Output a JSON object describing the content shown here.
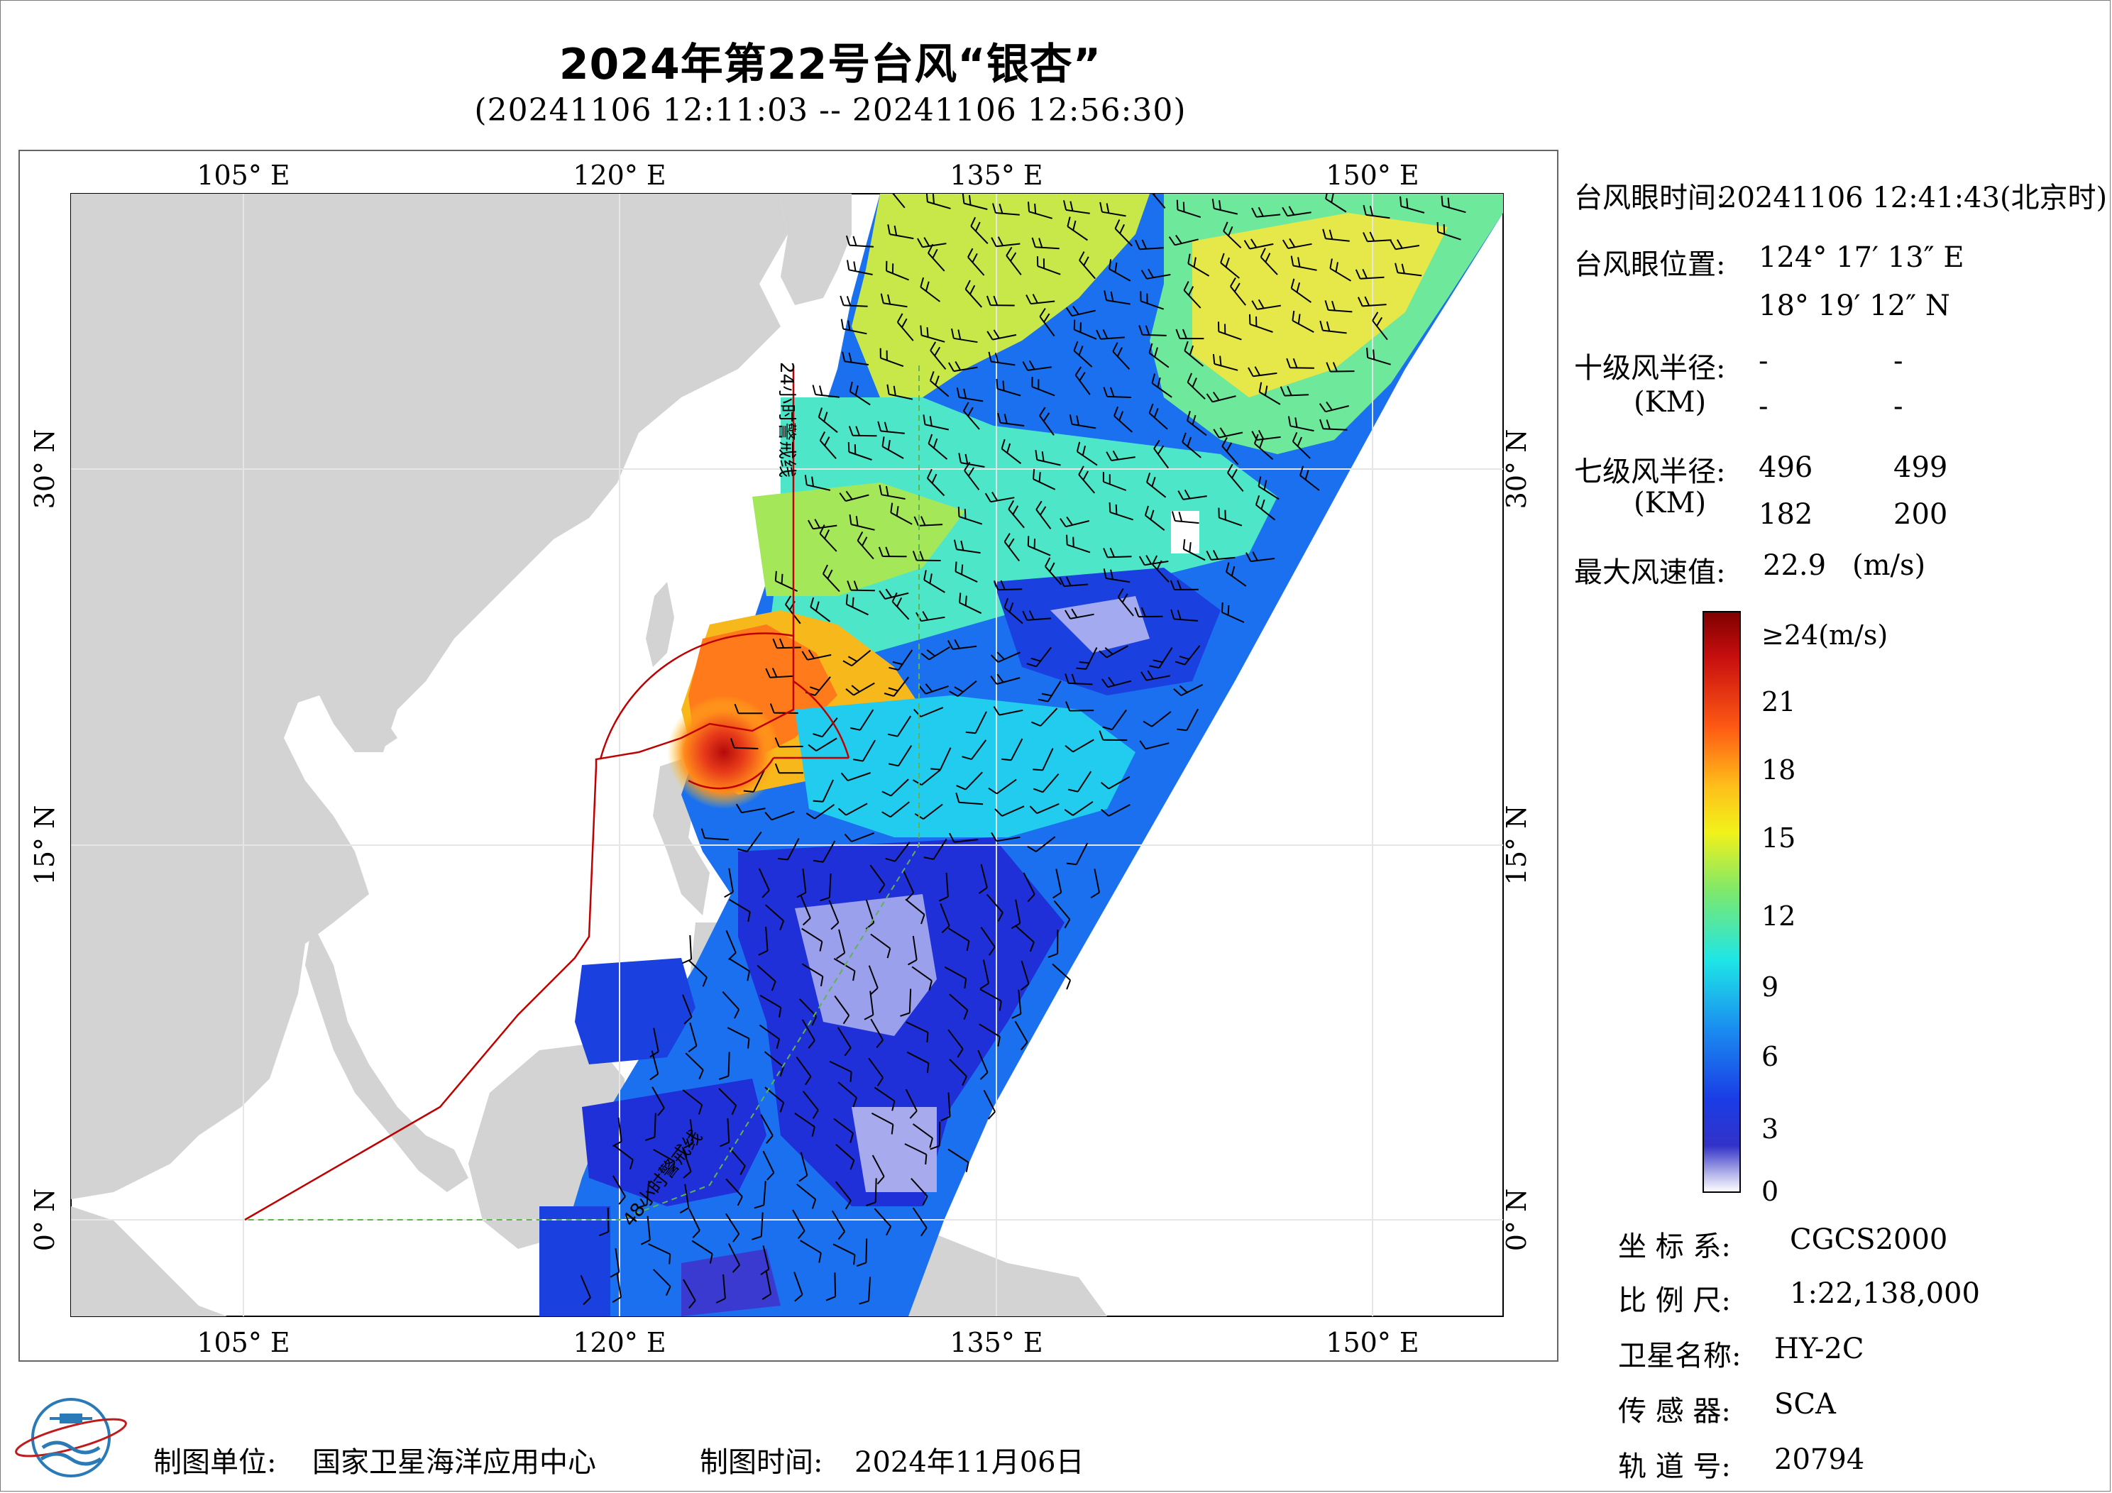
{
  "header": {
    "title": "2024年第22号台风“银杏”",
    "subtitle": "(20241106 12:11:03 -- 20241106 12:56:30)"
  },
  "map": {
    "lon_top": [
      "105° E",
      "120° E",
      "135° E",
      "150° E"
    ],
    "lon_bottom": [
      "105° E",
      "120° E",
      "135° E",
      "150° E"
    ],
    "lat_left": [
      "30° N",
      "15° N",
      "0° N"
    ],
    "lat_right": [
      "30° N",
      "15° N",
      "0° N"
    ],
    "warning_line_24h": "24小时警戒线",
    "warning_line_48h": "48小时警戒线",
    "extent": {
      "lon_min": 98,
      "lon_max": 155,
      "lat_min": -4,
      "lat_max": 41
    },
    "colors": {
      "land": "#d3d3d3",
      "sea": "#ffffff",
      "warning_24h": "#c00000",
      "warning_48h": "#5fb44f",
      "wind_barb": "#000000"
    }
  },
  "info": {
    "eye_time_label": "台风眼时间:",
    "eye_time_value": "20241106 12:41:43(北京时)",
    "eye_pos_label": "台风眼位置:",
    "eye_lon": "124° 17′ 13″ E",
    "eye_lat": "18° 19′ 12″ N",
    "r10_label": "十级风半径:",
    "r10_unit": "(KM)",
    "r10_values": [
      "-",
      "-",
      "-",
      "-"
    ],
    "r7_label": "七级风半径:",
    "r7_unit": "(KM)",
    "r7_values": [
      "496",
      "499",
      "182",
      "200"
    ],
    "max_wind_label": "最大风速值:",
    "max_wind_value": "22.9",
    "max_wind_unit": "(m/s)"
  },
  "colorbar": {
    "labels": [
      "≥24(m/s)",
      "21",
      "18",
      "15",
      "12",
      "9",
      "6",
      "3",
      "0"
    ],
    "stops": [
      "#7f0000",
      "#d71a1a",
      "#ff6a1a",
      "#ffb21a",
      "#e8e81a",
      "#8ee85a",
      "#1ae8e8",
      "#1aa0f0",
      "#1a5af0",
      "#1a20e0",
      "#3a3ad0",
      "#ffffff"
    ]
  },
  "metadata": {
    "crs_label": "坐 标 系:",
    "crs_value": "CGCS2000",
    "scale_label": "比 例 尺:",
    "scale_value": "1:22,138,000",
    "satellite_label": "卫星名称:",
    "satellite_value": "HY-2C",
    "sensor_label": "传 感 器:",
    "sensor_value": "SCA",
    "orbit_label": "轨 道 号:",
    "orbit_value": "20794"
  },
  "footer": {
    "producer_label": "制图单位:",
    "producer_value": "国家卫星海洋应用中心",
    "date_label": "制图时间:",
    "date_value": "2024年11月06日"
  }
}
